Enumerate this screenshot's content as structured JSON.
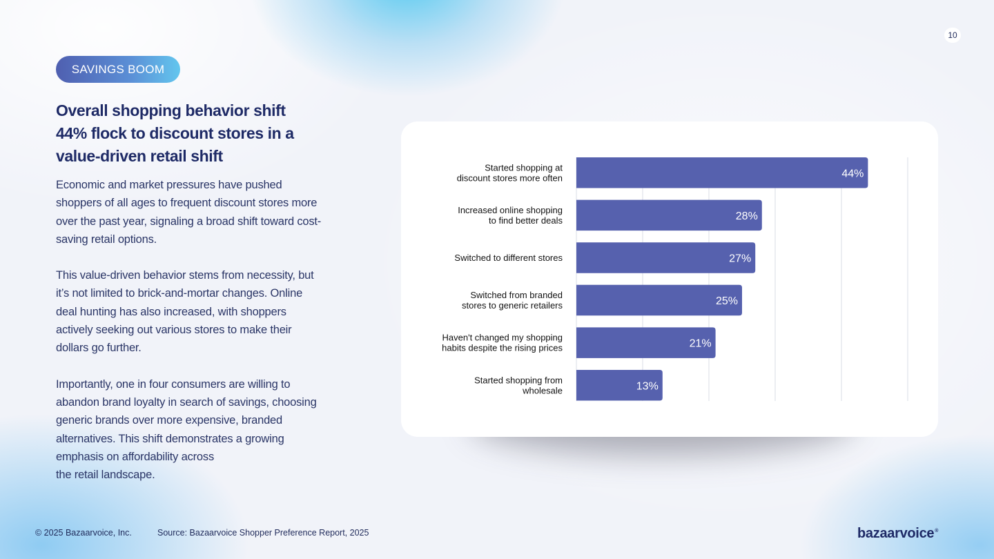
{
  "page_number": "10",
  "tag": "SAVINGS BOOM",
  "headline": {
    "lines": [
      "Overall shopping behavior shift",
      "44% flock to discount stores in a",
      "value-driven retail shift"
    ]
  },
  "body": {
    "paragraphs": [
      [
        "Economic and market pressures have pushed",
        "shoppers of all ages to frequent discount stores more",
        "over the past year, signaling a broad shift toward cost-",
        "saving retail options."
      ],
      [
        "This value-driven behavior stems from necessity, but",
        "it’s not limited to brick-and-mortar changes. Online",
        "deal hunting has also increased, with shoppers",
        "actively seeking out various stores to make their",
        "dollars go further."
      ],
      [
        "Importantly, one in four consumers are willing to",
        "abandon brand loyalty in search of savings, choosing",
        "generic brands over more expensive, branded",
        "alternatives. This shift demonstrates a growing",
        "emphasis on affordability across",
        "the retail landscape."
      ]
    ]
  },
  "chart_data": {
    "type": "bar",
    "orientation": "horizontal",
    "categories": [
      [
        "Started shopping at",
        "discount stores more often"
      ],
      [
        "Increased online shopping",
        "to find better deals"
      ],
      [
        "Switched to different stores"
      ],
      [
        "Switched from branded",
        "stores to generic retailers"
      ],
      [
        "Haven't changed my shopping",
        "habits despite the rising prices"
      ],
      [
        "Started shopping from",
        "wholesale"
      ]
    ],
    "values": [
      44,
      28,
      27,
      25,
      21,
      13
    ],
    "value_labels": [
      "44%",
      "28%",
      "27%",
      "25%",
      "21%",
      "13%"
    ],
    "xlim": [
      0,
      50
    ],
    "grid_step": 10,
    "grid": true,
    "bar_color": "#5661ae"
  },
  "footer": {
    "copyright": "© 2025 Bazaarvoice, Inc.",
    "source": "Source: Bazaarvoice Shopper Preference Report, 2025",
    "logo": "bazaarvoice",
    "logo_mark": "®"
  }
}
